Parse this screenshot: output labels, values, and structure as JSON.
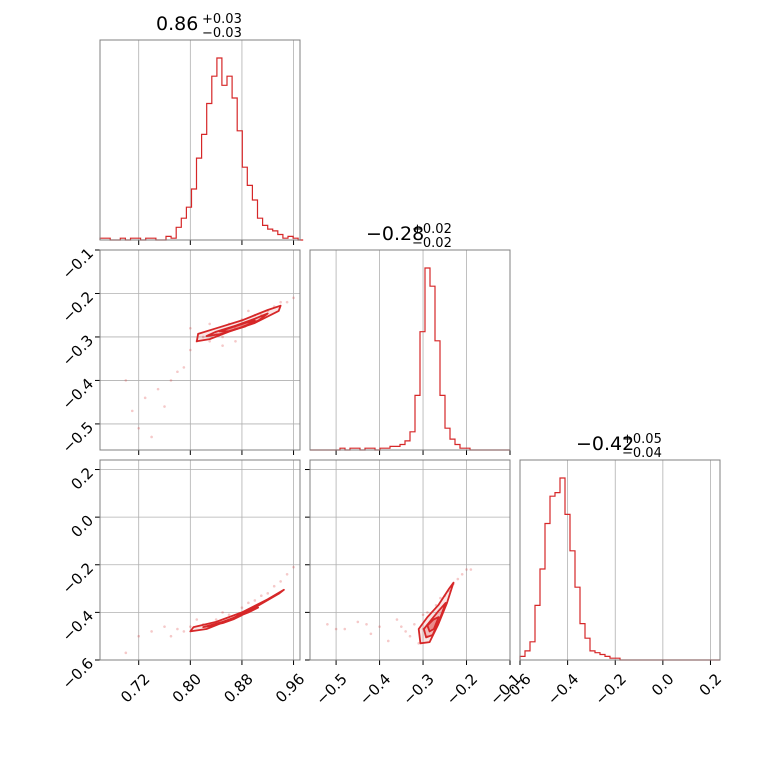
{
  "chart_data": {
    "type": "corner",
    "colors": {
      "line": "#d62728",
      "grid": "#b0b0b0",
      "axes": "#808080"
    },
    "grid": true,
    "parameters": [
      {
        "range": [
          0.66,
          0.97
        ],
        "ticks": [
          0.72,
          0.8,
          0.88,
          0.96
        ],
        "tick_labels": [
          "0.72",
          "0.80",
          "0.88",
          "0.96"
        ],
        "median": "0.86",
        "plus": "+0.03",
        "minus": "−0.03"
      },
      {
        "range": [
          -0.56,
          -0.1
        ],
        "ticks": [
          -0.5,
          -0.4,
          -0.3,
          -0.2,
          -0.1
        ],
        "tick_labels": [
          "−0.5",
          "−0.4",
          "−0.3",
          "−0.2",
          "−0.1"
        ],
        "median": "−0.28",
        "plus": "+0.02",
        "minus": "−0.02"
      },
      {
        "range": [
          -0.6,
          0.24
        ],
        "ticks": [
          -0.6,
          -0.4,
          -0.2,
          0.0,
          0.2
        ],
        "tick_labels": [
          "−0.6",
          "−0.4",
          "−0.2",
          "0.0",
          "0.2"
        ],
        "median": "−0.42",
        "plus": "+0.05",
        "minus": "−0.04"
      }
    ],
    "histograms": [
      {
        "param": 0,
        "edges": [
          0.66,
          0.975
        ],
        "counts": [
          1,
          1,
          0,
          0,
          1,
          0,
          1,
          1,
          0,
          1,
          1,
          0,
          0,
          2,
          1,
          7,
          12,
          18,
          28,
          45,
          58,
          75,
          90,
          100,
          85,
          90,
          78,
          60,
          40,
          30,
          22,
          12,
          8,
          6,
          5,
          3,
          1,
          2,
          1,
          0
        ]
      },
      {
        "param": 1,
        "edges": [
          -0.56,
          -0.1
        ],
        "counts": [
          0,
          0,
          0,
          0,
          0,
          0,
          1,
          0,
          1,
          1,
          0,
          1,
          1,
          0,
          1,
          1,
          2,
          2,
          3,
          5,
          10,
          30,
          65,
          100,
          90,
          60,
          30,
          12,
          6,
          3,
          1,
          1,
          0,
          0,
          0,
          0,
          0,
          0,
          0,
          0
        ]
      },
      {
        "param": 2,
        "edges": [
          -0.6,
          0.24
        ],
        "counts": [
          2,
          5,
          10,
          30,
          50,
          75,
          90,
          92,
          100,
          80,
          60,
          40,
          20,
          12,
          5,
          4,
          3,
          2,
          1,
          1,
          0,
          0,
          0,
          0,
          0,
          0,
          0,
          0,
          0,
          0,
          0,
          0,
          0,
          0,
          0,
          0,
          0,
          0,
          0,
          0
        ]
      }
    ],
    "joint": [
      {
        "x": 0,
        "y": 1,
        "scatter": [
          [
            0.7,
            -0.4
          ],
          [
            0.71,
            -0.47
          ],
          [
            0.72,
            -0.51
          ],
          [
            0.73,
            -0.44
          ],
          [
            0.74,
            -0.53
          ],
          [
            0.76,
            -0.46
          ],
          [
            0.77,
            -0.4
          ],
          [
            0.79,
            -0.37
          ],
          [
            0.8,
            -0.33
          ],
          [
            0.81,
            -0.31
          ],
          [
            0.82,
            -0.3
          ],
          [
            0.83,
            -0.31
          ],
          [
            0.84,
            -0.29
          ],
          [
            0.85,
            -0.3
          ],
          [
            0.86,
            -0.27
          ],
          [
            0.87,
            -0.28
          ],
          [
            0.88,
            -0.26
          ],
          [
            0.89,
            -0.27
          ],
          [
            0.9,
            -0.25
          ],
          [
            0.91,
            -0.25
          ],
          [
            0.92,
            -0.24
          ],
          [
            0.93,
            -0.23
          ],
          [
            0.94,
            -0.22
          ],
          [
            0.95,
            -0.22
          ],
          [
            0.96,
            -0.21
          ],
          [
            0.83,
            -0.27
          ],
          [
            0.85,
            -0.32
          ],
          [
            0.87,
            -0.31
          ],
          [
            0.89,
            -0.24
          ],
          [
            0.8,
            -0.28
          ],
          [
            0.78,
            -0.38
          ],
          [
            0.75,
            -0.42
          ]
        ],
        "contours": [
          [
            [
              0.81,
              -0.31
            ],
            [
              0.812,
              -0.293
            ],
            [
              0.84,
              -0.28
            ],
            [
              0.88,
              -0.262
            ],
            [
              0.92,
              -0.238
            ],
            [
              0.94,
              -0.228
            ],
            [
              0.937,
              -0.24
            ],
            [
              0.9,
              -0.268
            ],
            [
              0.86,
              -0.288
            ],
            [
              0.83,
              -0.305
            ],
            [
              0.81,
              -0.31
            ]
          ],
          [
            [
              0.825,
              -0.298
            ],
            [
              0.84,
              -0.288
            ],
            [
              0.87,
              -0.274
            ],
            [
              0.9,
              -0.258
            ],
            [
              0.92,
              -0.246
            ],
            [
              0.906,
              -0.262
            ],
            [
              0.875,
              -0.28
            ],
            [
              0.845,
              -0.294
            ],
            [
              0.825,
              -0.298
            ]
          ],
          [
            [
              0.845,
              -0.287
            ],
            [
              0.86,
              -0.28
            ],
            [
              0.885,
              -0.268
            ],
            [
              0.9,
              -0.262
            ],
            [
              0.885,
              -0.276
            ],
            [
              0.86,
              -0.287
            ],
            [
              0.845,
              -0.287
            ]
          ]
        ]
      },
      {
        "x": 0,
        "y": 2,
        "scatter": [
          [
            0.7,
            -0.57
          ],
          [
            0.72,
            -0.5
          ],
          [
            0.74,
            -0.48
          ],
          [
            0.76,
            -0.46
          ],
          [
            0.77,
            -0.5
          ],
          [
            0.78,
            -0.47
          ],
          [
            0.8,
            -0.46
          ],
          [
            0.82,
            -0.45
          ],
          [
            0.84,
            -0.43
          ],
          [
            0.86,
            -0.41
          ],
          [
            0.88,
            -0.38
          ],
          [
            0.9,
            -0.35
          ],
          [
            0.92,
            -0.32
          ],
          [
            0.94,
            -0.27
          ],
          [
            0.96,
            -0.21
          ],
          [
            0.95,
            -0.24
          ],
          [
            0.93,
            -0.29
          ],
          [
            0.87,
            -0.42
          ],
          [
            0.85,
            -0.4
          ],
          [
            0.83,
            -0.46
          ],
          [
            0.81,
            -0.43
          ],
          [
            0.89,
            -0.36
          ],
          [
            0.91,
            -0.33
          ],
          [
            0.79,
            -0.48
          ]
        ],
        "contours": [
          [
            [
              0.8,
              -0.48
            ],
            [
              0.805,
              -0.462
            ],
            [
              0.84,
              -0.44
            ],
            [
              0.88,
              -0.4
            ],
            [
              0.92,
              -0.345
            ],
            [
              0.945,
              -0.305
            ],
            [
              0.938,
              -0.32
            ],
            [
              0.9,
              -0.38
            ],
            [
              0.86,
              -0.432
            ],
            [
              0.825,
              -0.47
            ],
            [
              0.8,
              -0.48
            ]
          ],
          [
            [
              0.82,
              -0.462
            ],
            [
              0.85,
              -0.44
            ],
            [
              0.88,
              -0.41
            ],
            [
              0.905,
              -0.38
            ],
            [
              0.89,
              -0.4
            ],
            [
              0.86,
              -0.432
            ],
            [
              0.835,
              -0.455
            ],
            [
              0.82,
              -0.462
            ]
          ],
          [
            [
              0.84,
              -0.45
            ],
            [
              0.86,
              -0.432
            ],
            [
              0.88,
              -0.412
            ],
            [
              0.868,
              -0.428
            ],
            [
              0.85,
              -0.445
            ],
            [
              0.84,
              -0.45
            ]
          ]
        ]
      },
      {
        "x": 1,
        "y": 2,
        "scatter": [
          [
            -0.52,
            -0.45
          ],
          [
            -0.48,
            -0.47
          ],
          [
            -0.45,
            -0.44
          ],
          [
            -0.42,
            -0.49
          ],
          [
            -0.4,
            -0.46
          ],
          [
            -0.38,
            -0.52
          ],
          [
            -0.36,
            -0.43
          ],
          [
            -0.34,
            -0.48
          ],
          [
            -0.33,
            -0.5
          ],
          [
            -0.32,
            -0.45
          ],
          [
            -0.31,
            -0.53
          ],
          [
            -0.3,
            -0.47
          ],
          [
            -0.29,
            -0.4
          ],
          [
            -0.28,
            -0.43
          ],
          [
            -0.27,
            -0.37
          ],
          [
            -0.26,
            -0.34
          ],
          [
            -0.25,
            -0.33
          ],
          [
            -0.24,
            -0.31
          ],
          [
            -0.23,
            -0.28
          ],
          [
            -0.22,
            -0.26
          ],
          [
            -0.21,
            -0.24
          ],
          [
            -0.2,
            -0.22
          ],
          [
            -0.19,
            -0.22
          ],
          [
            -0.3,
            -0.41
          ],
          [
            -0.29,
            -0.5
          ],
          [
            -0.27,
            -0.45
          ],
          [
            -0.35,
            -0.46
          ],
          [
            -0.43,
            -0.45
          ],
          [
            -0.5,
            -0.47
          ]
        ],
        "contours": [
          [
            [
              -0.31,
              -0.47
            ],
            [
              -0.306,
              -0.53
            ],
            [
              -0.285,
              -0.525
            ],
            [
              -0.265,
              -0.45
            ],
            [
              -0.245,
              -0.36
            ],
            [
              -0.23,
              -0.275
            ],
            [
              -0.24,
              -0.3
            ],
            [
              -0.265,
              -0.37
            ],
            [
              -0.29,
              -0.42
            ],
            [
              -0.31,
              -0.47
            ]
          ],
          [
            [
              -0.298,
              -0.47
            ],
            [
              -0.293,
              -0.505
            ],
            [
              -0.278,
              -0.495
            ],
            [
              -0.262,
              -0.43
            ],
            [
              -0.248,
              -0.36
            ],
            [
              -0.265,
              -0.395
            ],
            [
              -0.285,
              -0.44
            ],
            [
              -0.298,
              -0.47
            ]
          ],
          [
            [
              -0.29,
              -0.455
            ],
            [
              -0.285,
              -0.48
            ],
            [
              -0.275,
              -0.47
            ],
            [
              -0.264,
              -0.42
            ],
            [
              -0.276,
              -0.43
            ],
            [
              -0.29,
              -0.455
            ]
          ]
        ]
      }
    ]
  }
}
